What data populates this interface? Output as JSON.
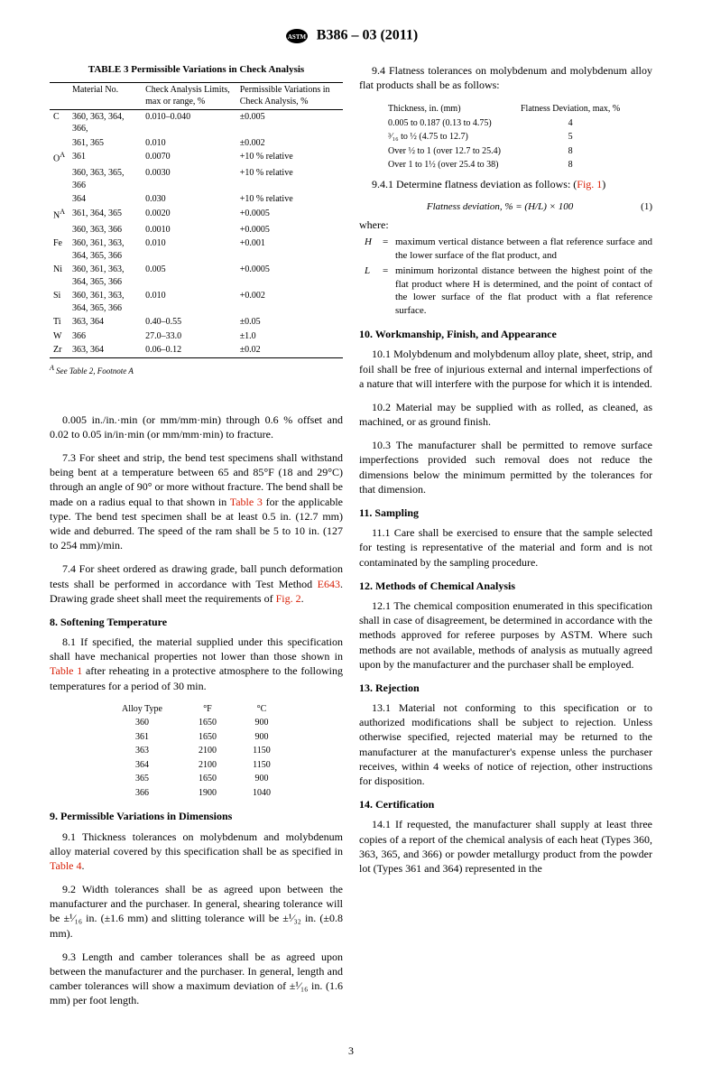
{
  "header": {
    "standard": "B386 – 03 (2011)"
  },
  "table3": {
    "title": "TABLE 3 Permissible Variations in Check Analysis",
    "colors": {
      "rule": "#000000"
    },
    "headers": [
      "",
      "Material No.",
      "Check Analysis Limits, max or range, %",
      "Permissible Variations in Check Analysis, %"
    ],
    "rows": [
      [
        "C",
        "360, 363, 364, 366,",
        "0.010–0.040",
        "±0.005"
      ],
      [
        "",
        "361, 365",
        "0.010",
        "±0.002"
      ],
      [
        "O",
        "361",
        "0.0070",
        "+10 % relative"
      ],
      [
        "",
        "360, 363, 365, 366",
        "0.0030",
        "+10 % relative"
      ],
      [
        "",
        "364",
        "0.030",
        "+10 % relative"
      ],
      [
        "N",
        "361, 364, 365",
        "0.0020",
        "+0.0005"
      ],
      [
        "",
        "360, 363, 366",
        "0.0010",
        "+0.0005"
      ],
      [
        "Fe",
        "360, 361, 363, 364, 365, 366",
        "0.010",
        "+0.001"
      ],
      [
        "Ni",
        "360, 361, 363, 364, 365, 366",
        "0.005",
        "+0.0005"
      ],
      [
        "Si",
        "360, 361, 363, 364, 365, 366",
        "0.010",
        "+0.002"
      ],
      [
        "Ti",
        "363, 364",
        "0.40–0.55",
        "±0.05"
      ],
      [
        "W",
        "366",
        "27.0–33.0",
        "±1.0"
      ],
      [
        "Zr",
        "363, 364",
        "0.06–0.12",
        "±0.02"
      ]
    ],
    "superscripts": {
      "O": "A",
      "N": "A"
    },
    "footnote_label": "A",
    "footnote_text": "See Table 2, Footnote A"
  },
  "left_body": {
    "p_intro": "0.005 in./in.·min (or mm/mm·min) through 0.6 % offset and 0.02 to 0.05 in/in·min (or mm/mm·min) to fracture.",
    "p73": "7.3 For sheet and strip, the bend test specimens shall withstand being bent at a temperature between 65 and 85°F (18 and 29°C) through an angle of 90° or more without fracture. The bend shall be made on a radius equal to that shown in ",
    "p73_link": "Table 3",
    "p73_tail": " for the applicable type. The bend test specimen shall be at least 0.5 in. (12.7 mm) wide and deburred. The speed of the ram shall be 5 to 10 in. (127 to 254 mm)/min.",
    "p74": "7.4 For sheet ordered as drawing grade, ball punch deformation tests shall be performed in accordance with Test Method ",
    "p74_link": "E643",
    "p74_mid": ". Drawing grade sheet shall meet the requirements of ",
    "p74_link2": "Fig. 2",
    "p74_tail": ".",
    "h8": "8. Softening Temperature",
    "p81": "8.1 If specified, the material supplied under this specification shall have mechanical properties not lower than those shown in ",
    "p81_link": "Table 1",
    "p81_tail": " after reheating in a protective atmosphere to the following temperatures for a period of 30 min.",
    "temp_table": {
      "headers": [
        "Alloy Type",
        "°F",
        "°C"
      ],
      "rows": [
        [
          "360",
          "1650",
          "900"
        ],
        [
          "361",
          "1650",
          "900"
        ],
        [
          "363",
          "2100",
          "1150"
        ],
        [
          "364",
          "2100",
          "1150"
        ],
        [
          "365",
          "1650",
          "900"
        ],
        [
          "366",
          "1900",
          "1040"
        ]
      ]
    },
    "h9": "9. Permissible Variations in Dimensions",
    "p91": "9.1 Thickness tolerances on molybdenum and molybdenum alloy material covered by this specification shall be as specified in ",
    "p91_link": "Table 4",
    "p91_tail": ".",
    "p92": "9.2 Width tolerances shall be as agreed upon between the manufacturer and the purchaser. In general, shearing tolerance will be ±¹⁄₁₆ in. (±1.6 mm) and slitting tolerance will be ±¹⁄₃₂ in. (±0.8 mm).",
    "p93": "9.3 Length and camber tolerances shall be as agreed upon between the manufacturer and the purchaser. In general, length and camber tolerances will show a maximum deviation of ±¹⁄₁₆ in. (1.6 mm) per foot length."
  },
  "right_body": {
    "p94": "9.4 Flatness tolerances on molybdenum and molybdenum alloy flat products shall be as follows:",
    "flat_table": {
      "h1": "Thickness, in. (mm)",
      "h2": "Flatness Deviation, max, %",
      "rows": [
        [
          "0.005 to 0.187 (0.13 to 4.75)",
          "4"
        ],
        [
          "³⁄₁₆ to ½ (4.75 to 12.7)",
          "5"
        ],
        [
          "Over ½ to 1 (over 12.7 to 25.4)",
          "8"
        ],
        [
          "Over 1 to 1½ (over 25.4 to 38)",
          "8"
        ]
      ]
    },
    "p941": "9.4.1 Determine flatness deviation as follows: (",
    "p941_link": "Fig. 1",
    "p941_tail": ")",
    "formula": "Flatness deviation, % = (H/L) × 100",
    "formula_num": "(1)",
    "where_label": "where:",
    "where": [
      {
        "sym": "H",
        "def": "maximum vertical distance between a flat reference surface and the lower surface of the flat product, and"
      },
      {
        "sym": "L",
        "def": "minimum horizontal distance between the highest point of the flat product where H is determined, and the point of contact of the lower surface of the flat product with a flat reference surface."
      }
    ],
    "h10": "10. Workmanship, Finish, and Appearance",
    "p101": "10.1 Molybdenum and molybdenum alloy plate, sheet, strip, and foil shall be free of injurious external and internal imperfections of a nature that will interfere with the purpose for which it is intended.",
    "p102": "10.2 Material may be supplied with as rolled, as cleaned, as machined, or as ground finish.",
    "p103": "10.3 The manufacturer shall be permitted to remove surface imperfections provided such removal does not reduce the dimensions below the minimum permitted by the tolerances for that dimension.",
    "h11": "11. Sampling",
    "p111": "11.1 Care shall be exercised to ensure that the sample selected for testing is representative of the material and form and is not contaminated by the sampling procedure.",
    "h12": "12. Methods of Chemical Analysis",
    "p121": "12.1 The chemical composition enumerated in this specification shall in case of disagreement, be determined in accordance with the methods approved for referee purposes by ASTM. Where such methods are not available, methods of analysis as mutually agreed upon by the manufacturer and the purchaser shall be employed.",
    "h13": "13. Rejection",
    "p131": "13.1 Material not conforming to this specification or to authorized modifications shall be subject to rejection. Unless otherwise specified, rejected material may be returned to the manufacturer at the manufacturer's expense unless the purchaser receives, within 4 weeks of notice of rejection, other instructions for disposition.",
    "h14": "14. Certification",
    "p141": "14.1 If requested, the manufacturer shall supply at least three copies of a report of the chemical analysis of each heat (Types 360, 363, 365, and 366) or powder metallurgy product from the powder lot (Types 361 and 364) represented in the"
  },
  "page_number": "3"
}
